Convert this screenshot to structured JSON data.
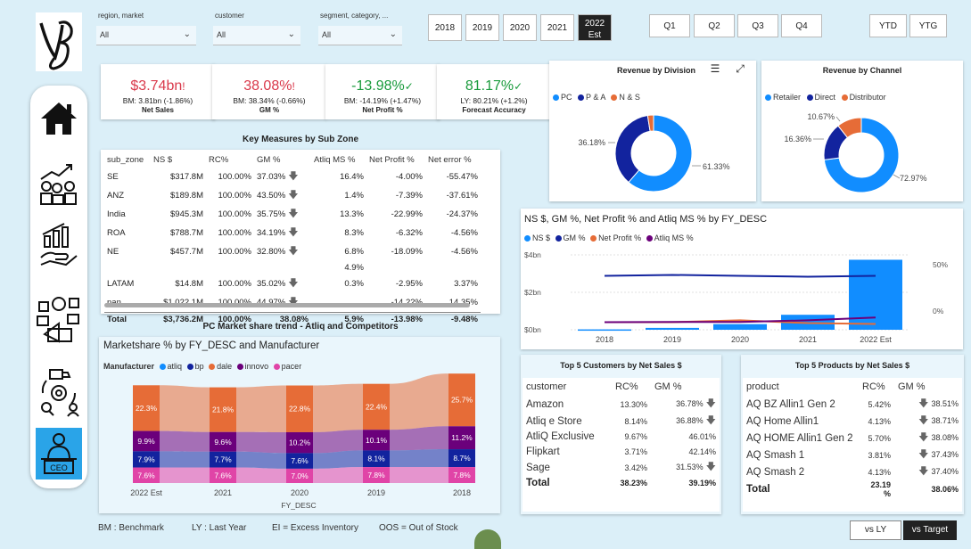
{
  "logo": {
    "text": "VB"
  },
  "slicers": [
    {
      "label": "region, market",
      "value": "All"
    },
    {
      "label": "customer",
      "value": "All"
    },
    {
      "label": "segment, category, ...",
      "value": "All"
    }
  ],
  "years": [
    {
      "label": "2018"
    },
    {
      "label": "2019"
    },
    {
      "label": "2020"
    },
    {
      "label": "2021"
    },
    {
      "label": "2022",
      "sub": "Est",
      "selected": true
    }
  ],
  "quarters": [
    "Q1",
    "Q2",
    "Q3",
    "Q4"
  ],
  "ytd": [
    "YTD",
    "YTG"
  ],
  "nav": [
    {
      "name": "home-icon",
      "active": false
    },
    {
      "name": "finance-icon",
      "active": false
    },
    {
      "name": "sales-growth-icon",
      "active": false
    },
    {
      "name": "marketing-icon",
      "active": false
    },
    {
      "name": "supply-chain-icon",
      "active": false
    },
    {
      "name": "ceo-icon",
      "active": true
    }
  ],
  "kpis": [
    {
      "value": "$3.74bn",
      "flag": "!",
      "sub": "BM: 3.81bn (-1.86%)",
      "label": "Net Sales",
      "color": "#d9394b"
    },
    {
      "value": "38.08%",
      "flag": "!",
      "sub": "BM: 38.34% (-0.66%)",
      "label": "GM %",
      "color": "#d9394b"
    },
    {
      "value": "-13.98%",
      "flag": "✓",
      "sub": "BM: -14.19% (+1.47%)",
      "label": "Net Profit %",
      "color": "#1a9b3c"
    },
    {
      "value": "81.17%",
      "flag": "✓",
      "sub": "LY: 80.21% (+1.2%)",
      "label": "Forecast Accuracy",
      "color": "#1a9b3c"
    }
  ],
  "key_measures": {
    "title": "Key Measures by Sub Zone",
    "headers": [
      "sub_zone",
      "NS $",
      "RC%",
      "GM %",
      "Atliq MS %",
      "Net Profit %",
      "Net error %"
    ],
    "rows": [
      [
        "SE",
        "$317.8M",
        "100.00%",
        "37.03%",
        "16.4%",
        "-4.00%",
        "-55.47%"
      ],
      [
        "ANZ",
        "$189.8M",
        "100.00%",
        "43.50%",
        "1.4%",
        "-7.39%",
        "-37.61%"
      ],
      [
        "India",
        "$945.3M",
        "100.00%",
        "35.75%",
        "13.3%",
        "-22.99%",
        "-24.37%"
      ],
      [
        "ROA",
        "$788.7M",
        "100.00%",
        "34.19%",
        "8.3%",
        "-6.32%",
        "-4.56%"
      ],
      [
        "NE",
        "$457.7M",
        "100.00%",
        "32.80%",
        "6.8%",
        "-18.09%",
        "-4.56%"
      ],
      [
        "",
        "",
        "",
        "",
        "4.9%",
        "",
        ""
      ],
      [
        "LATAM",
        "$14.8M",
        "100.00%",
        "35.02%",
        "0.3%",
        "-2.95%",
        "3.37%"
      ],
      [
        "nan",
        "$1,022.1M",
        "100.00%",
        "44.97%",
        "",
        "-14.22%",
        "14.35%"
      ]
    ],
    "total": [
      "Total",
      "$3,736.2M",
      "100.00%",
      "38.08%",
      "5.9%",
      "-13.98%",
      "-9.48%"
    ]
  },
  "division": {
    "title": "Revenue by Division",
    "legend": [
      {
        "name": "PC",
        "color": "#118dff"
      },
      {
        "name": "P & A",
        "color": "#12239e"
      },
      {
        "name": "N & S",
        "color": "#e66c37"
      }
    ],
    "chart_data": {
      "type": "pie",
      "categories": [
        "PC",
        "P & A",
        "N & S"
      ],
      "values": [
        61.33,
        36.18,
        2.49
      ],
      "labels": [
        "61.33%",
        "36.18%",
        ""
      ]
    }
  },
  "channel": {
    "title": "Revenue by Channel",
    "legend": [
      {
        "name": "Retailer",
        "color": "#118dff"
      },
      {
        "name": "Direct",
        "color": "#12239e"
      },
      {
        "name": "Distributor",
        "color": "#e66c37"
      }
    ],
    "chart_data": {
      "type": "pie",
      "categories": [
        "Retailer",
        "Direct",
        "Distributor"
      ],
      "values": [
        72.97,
        16.36,
        10.67
      ],
      "labels": [
        "72.97%",
        "16.36%",
        "10.67%"
      ]
    }
  },
  "combo": {
    "title": "NS $, GM %, Net Profit % and Atliq MS % by FY_DESC",
    "legend": [
      {
        "name": "NS $",
        "color": "#118dff"
      },
      {
        "name": "GM %",
        "color": "#12239e"
      },
      {
        "name": "Net Profit %",
        "color": "#e66c37"
      },
      {
        "name": "Atliq MS %",
        "color": "#6b007b"
      }
    ],
    "chart_data": {
      "type": "bar",
      "categories": [
        "2018",
        "2019",
        "2020",
        "2021",
        "2022 Est"
      ],
      "y_ticks": [
        "$4bn",
        "$2bn",
        "$0bn"
      ],
      "y2_ticks": [
        "50%",
        "0%"
      ],
      "series": [
        {
          "name": "NS $",
          "values": [
            0.02,
            0.1,
            0.3,
            0.8,
            3.74
          ]
        },
        {
          "name": "GM %",
          "values": [
            38,
            39,
            38,
            37,
            38
          ]
        },
        {
          "name": "Net Profit %",
          "values": [
            -12,
            -12,
            -10,
            -13,
            -14
          ]
        },
        {
          "name": "Atliq MS %",
          "values": [
            -12,
            -11.8,
            -11.8,
            -10,
            -7
          ]
        }
      ]
    }
  },
  "market_share": {
    "card_title": "PC Market share trend - Atliq and Competitors",
    "chart_title": "Marketshare % by FY_DESC and Manufacturer",
    "legend_title": "Manufacturer",
    "legend": [
      {
        "name": "atliq",
        "color": "#118dff"
      },
      {
        "name": "bp",
        "color": "#12239e"
      },
      {
        "name": "dale",
        "color": "#e66c37"
      },
      {
        "name": "innovo",
        "color": "#6b007b"
      },
      {
        "name": "pacer",
        "color": "#e044a7"
      }
    ],
    "xlabel": "FY_DESC",
    "chart_data": {
      "type": "area",
      "categories": [
        "2022 Est",
        "2021",
        "2020",
        "2019",
        "2018"
      ],
      "series": [
        {
          "name": "dale",
          "values": [
            22.3,
            21.8,
            22.8,
            22.4,
            25.7
          ],
          "labels": [
            "22.3%",
            "21.8%",
            "22.8%",
            "22.4%",
            "25.7%"
          ]
        },
        {
          "name": "innovo",
          "values": [
            9.9,
            9.6,
            10.2,
            10.1,
            11.2
          ],
          "labels": [
            "9.9%",
            "9.6%",
            "10.2%",
            "10.1%",
            "11.2%"
          ]
        },
        {
          "name": "bp",
          "values": [
            7.9,
            7.7,
            7.6,
            8.1,
            8.7
          ],
          "labels": [
            "7.9%",
            "7.7%",
            "7.6%",
            "8.1%",
            "8.7%"
          ]
        },
        {
          "name": "pacer",
          "values": [
            7.6,
            7.6,
            7.0,
            7.8,
            7.8
          ],
          "labels": [
            "7.6%",
            "7.6%",
            "7.0%",
            "7.8%",
            "7.8%"
          ]
        }
      ]
    }
  },
  "top_customers": {
    "title": "Top 5 Customers by Net Sales $",
    "headers": [
      "customer",
      "RC%",
      "GM %"
    ],
    "rows": [
      {
        "name": "Amazon",
        "rc": "13.30%",
        "gm": "36.78%",
        "down": true
      },
      {
        "name": "Atliq e Store",
        "rc": "8.14%",
        "gm": "36.88%",
        "down": true
      },
      {
        "name": "AtliQ Exclusive",
        "rc": "9.67%",
        "gm": "46.01%",
        "down": false
      },
      {
        "name": "Flipkart",
        "rc": "3.71%",
        "gm": "42.14%",
        "down": false
      },
      {
        "name": "Sage",
        "rc": "3.42%",
        "gm": "31.53%",
        "down": true
      }
    ],
    "total": {
      "name": "Total",
      "rc": "38.23%",
      "gm": "39.19%"
    }
  },
  "top_products": {
    "title": "Top 5 Products by Net Sales $",
    "headers": [
      "product",
      "RC%",
      "GM %"
    ],
    "rows": [
      {
        "name": "AQ BZ Allin1 Gen 2",
        "rc": "5.42%",
        "gm": "38.51%"
      },
      {
        "name": "AQ Home Allin1",
        "rc": "4.13%",
        "gm": "38.71%"
      },
      {
        "name": "AQ HOME Allin1 Gen 2",
        "rc": "5.70%",
        "gm": "38.08%"
      },
      {
        "name": "AQ Smash 1",
        "rc": "3.81%",
        "gm": "37.43%"
      },
      {
        "name": "AQ Smash 2",
        "rc": "4.13%",
        "gm": "37.40%"
      }
    ],
    "total": {
      "name": "Total",
      "rc": "23.19 %",
      "gm": "38.06%"
    }
  },
  "footer": [
    "BM : Benchmark",
    "LY : Last Year",
    "EI = Excess Inventory",
    "OOS = Out of Stock"
  ],
  "toggle": {
    "a": "vs LY",
    "b": "vs Target"
  }
}
